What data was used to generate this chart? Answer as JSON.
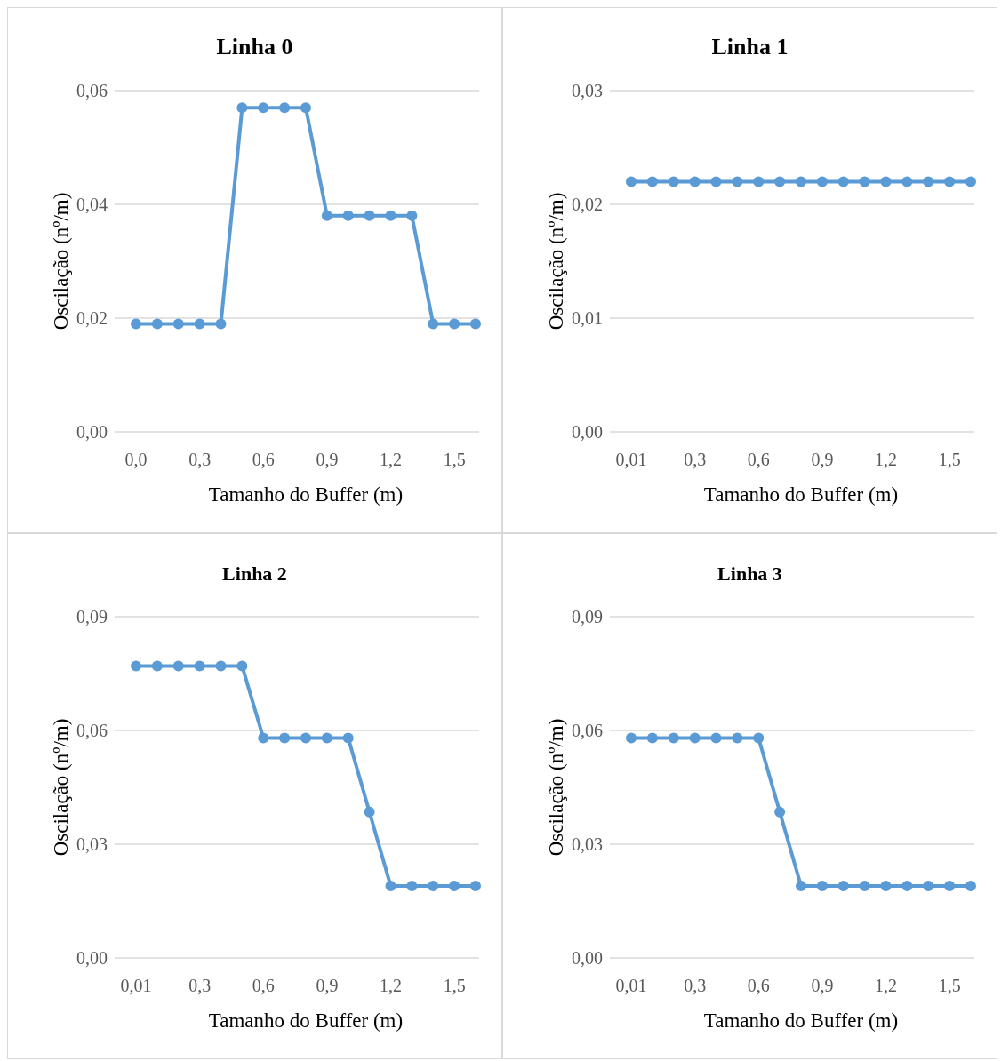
{
  "chart_data": [
    {
      "type": "line",
      "title": "Linha 0",
      "xlabel": "Tamanho do Buffer (m)",
      "ylabel": "Oscilação (nº/m)",
      "categories": [
        "0,0",
        null,
        null,
        "0,3",
        null,
        null,
        "0,6",
        null,
        null,
        "0,9",
        null,
        null,
        "1,2",
        null,
        null,
        "1,5",
        null
      ],
      "series": [
        {
          "color": "#5b9bd5",
          "values": [
            0.019,
            0.019,
            0.019,
            0.019,
            0.019,
            0.057,
            0.057,
            0.057,
            0.057,
            0.038,
            0.038,
            0.038,
            0.038,
            0.038,
            0.019,
            0.019,
            0.019
          ]
        }
      ],
      "ylim": [
        0,
        0.06
      ],
      "yticks": [
        {
          "value": 0,
          "label": "0,00"
        },
        {
          "value": 0.02,
          "label": "0,02"
        },
        {
          "value": 0.04,
          "label": "0,04"
        },
        {
          "value": 0.06,
          "label": "0,06"
        }
      ],
      "grid": "y",
      "marker": "circle"
    },
    {
      "type": "line",
      "title": "Linha 1",
      "xlabel": "Tamanho do Buffer (m)",
      "ylabel": "Oscilação (nº/m)",
      "categories": [
        "0,01",
        null,
        null,
        "0,3",
        null,
        null,
        "0,6",
        null,
        null,
        "0,9",
        null,
        null,
        "1,2",
        null,
        null,
        "1,5",
        null
      ],
      "series": [
        {
          "color": "#5b9bd5",
          "values": [
            0.022,
            0.022,
            0.022,
            0.022,
            0.022,
            0.022,
            0.022,
            0.022,
            0.022,
            0.022,
            0.022,
            0.022,
            0.022,
            0.022,
            0.022,
            0.022,
            0.022
          ]
        }
      ],
      "ylim": [
        0,
        0.03
      ],
      "yticks": [
        {
          "value": 0,
          "label": "0,00"
        },
        {
          "value": 0.01,
          "label": "0,01"
        },
        {
          "value": 0.02,
          "label": "0,02"
        },
        {
          "value": 0.03,
          "label": "0,03"
        }
      ],
      "grid": "y",
      "marker": "circle"
    },
    {
      "type": "line",
      "title": "Linha 2",
      "xlabel": "Tamanho do Buffer (m)",
      "ylabel": "Oscilação (nº/m)",
      "categories": [
        "0,01",
        null,
        null,
        "0,3",
        null,
        null,
        "0,6",
        null,
        null,
        "0,9",
        null,
        null,
        "1,2",
        null,
        null,
        "1,5",
        null
      ],
      "series": [
        {
          "color": "#5b9bd5",
          "values": [
            0.077,
            0.077,
            0.077,
            0.077,
            0.077,
            0.077,
            0.058,
            0.058,
            0.058,
            0.058,
            0.058,
            0.0385,
            0.019,
            0.019,
            0.019,
            0.019,
            0.019
          ]
        }
      ],
      "ylim": [
        0,
        0.09
      ],
      "yticks": [
        {
          "value": 0,
          "label": "0,00"
        },
        {
          "value": 0.03,
          "label": "0,03"
        },
        {
          "value": 0.06,
          "label": "0,06"
        },
        {
          "value": 0.09,
          "label": "0,09"
        }
      ],
      "grid": "y",
      "marker": "circle"
    },
    {
      "type": "line",
      "title": "Linha 3",
      "xlabel": "Tamanho do Buffer (m)",
      "ylabel": "Oscilação (nº/m)",
      "categories": [
        "0,01",
        null,
        null,
        "0,3",
        null,
        null,
        "0,6",
        null,
        null,
        "0,9",
        null,
        null,
        "1,2",
        null,
        null,
        "1,5",
        null
      ],
      "series": [
        {
          "color": "#5b9bd5",
          "values": [
            0.058,
            0.058,
            0.058,
            0.058,
            0.058,
            0.058,
            0.058,
            0.0385,
            0.019,
            0.019,
            0.019,
            0.019,
            0.019,
            0.019,
            0.019,
            0.019,
            0.019
          ]
        }
      ],
      "ylim": [
        0,
        0.09
      ],
      "yticks": [
        {
          "value": 0,
          "label": "0,00"
        },
        {
          "value": 0.03,
          "label": "0,03"
        },
        {
          "value": 0.06,
          "label": "0,06"
        },
        {
          "value": 0.09,
          "label": "0,09"
        }
      ],
      "grid": "y",
      "marker": "circle"
    }
  ]
}
